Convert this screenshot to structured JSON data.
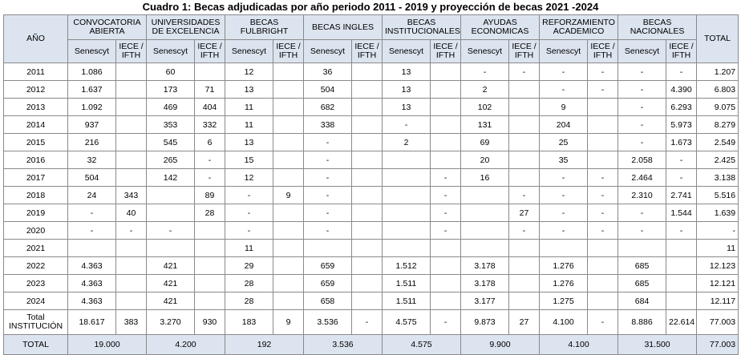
{
  "title": "Cuadro 1: Becas adjudicadas por año periodo 2011 - 2019 y proyección de becas 2021 -2024",
  "headers": {
    "year": "AÑO",
    "groups": [
      "CONVOCATORIA ABIERTA",
      "UNIVERSIDADES DE EXCELENCIA",
      "BECAS FULBRIGHT",
      "BECAS INGLES",
      "BECAS INSTITUCIONALES",
      "AYUDAS ECONOMICAS",
      "REFORZAMIENTO ACADEMICO",
      "BECAS NACIONALES"
    ],
    "sub_senescyt": "Senescyt",
    "sub_iece": "IECE / IFTH",
    "total": "TOTAL"
  },
  "rows": [
    {
      "year": "2011",
      "cells": [
        "1.086",
        "",
        "60",
        "",
        "12",
        "",
        "36",
        "",
        "13",
        "",
        "-",
        "-",
        "-",
        "-",
        "-",
        "-"
      ],
      "total": "1.207"
    },
    {
      "year": "2012",
      "cells": [
        "1.637",
        "",
        "173",
        "71",
        "13",
        "",
        "504",
        "",
        "13",
        "",
        "2",
        "",
        "-",
        "-",
        "-",
        "4.390"
      ],
      "total": "6.803"
    },
    {
      "year": "2013",
      "cells": [
        "1.092",
        "",
        "469",
        "404",
        "11",
        "",
        "682",
        "",
        "13",
        "",
        "102",
        "",
        "9",
        "",
        "-",
        "6.293"
      ],
      "total": "9.075"
    },
    {
      "year": "2014",
      "cells": [
        "937",
        "",
        "353",
        "332",
        "11",
        "",
        "338",
        "",
        "-",
        "",
        "131",
        "",
        "204",
        "",
        "-",
        "5.973"
      ],
      "total": "8.279"
    },
    {
      "year": "2015",
      "cells": [
        "216",
        "",
        "545",
        "6",
        "13",
        "",
        "-",
        "",
        "2",
        "",
        "69",
        "",
        "25",
        "",
        "-",
        "1.673"
      ],
      "total": "2.549"
    },
    {
      "year": "2016",
      "cells": [
        "32",
        "",
        "265",
        "-",
        "15",
        "",
        "-",
        "",
        "",
        "",
        "20",
        "",
        "35",
        "",
        "2.058",
        "-"
      ],
      "total": "2.425"
    },
    {
      "year": "2017",
      "cells": [
        "504",
        "",
        "142",
        "-",
        "12",
        "",
        "-",
        "",
        "",
        "-",
        "16",
        "",
        "-",
        "-",
        "2.464",
        "-"
      ],
      "total": "3.138"
    },
    {
      "year": "2018",
      "cells": [
        "24",
        "343",
        "",
        "89",
        "-",
        "9",
        "-",
        "",
        "",
        "-",
        "",
        "-",
        "-",
        "-",
        "2.310",
        "2.741"
      ],
      "total": "5.516"
    },
    {
      "year": "2019",
      "cells": [
        "-",
        "40",
        "",
        "28",
        "-",
        "",
        "-",
        "",
        "",
        "-",
        "",
        "27",
        "-",
        "-",
        "-",
        "1.544"
      ],
      "total": "1.639"
    },
    {
      "year": "2020",
      "cells": [
        "-",
        "-",
        "-",
        "",
        "-",
        "",
        "-",
        "",
        "",
        "-",
        "",
        "-",
        "-",
        "-",
        "-",
        "-"
      ],
      "total": "-"
    },
    {
      "year": "2021",
      "cells": [
        "",
        "",
        "",
        "",
        "11",
        "",
        "",
        "",
        "",
        "",
        "",
        "",
        "",
        "",
        "",
        ""
      ],
      "total": "11"
    },
    {
      "year": "2022",
      "cells": [
        "4.363",
        "",
        "421",
        "",
        "29",
        "",
        "659",
        "",
        "1.512",
        "",
        "3.178",
        "",
        "1.276",
        "",
        "685",
        ""
      ],
      "total": "12.123"
    },
    {
      "year": "2023",
      "cells": [
        "4.363",
        "",
        "421",
        "",
        "28",
        "",
        "659",
        "",
        "1.511",
        "",
        "3.178",
        "",
        "1.276",
        "",
        "685",
        ""
      ],
      "total": "12.121"
    },
    {
      "year": "2024",
      "cells": [
        "4.363",
        "",
        "421",
        "",
        "28",
        "",
        "658",
        "",
        "1.511",
        "",
        "3.177",
        "",
        "1.275",
        "",
        "684",
        ""
      ],
      "total": "12.117"
    }
  ],
  "total_institucion": {
    "label": "Total INSTITUCIÓN",
    "cells": [
      "18.617",
      "383",
      "3.270",
      "930",
      "183",
      "9",
      "3.536",
      "-",
      "4.575",
      "-",
      "9.873",
      "27",
      "4.100",
      "-",
      "8.886",
      "22.614"
    ],
    "total": "77.003"
  },
  "total_row": {
    "label": "TOTAL",
    "cells": [
      "19.000",
      "4.200",
      "192",
      "3.536",
      "4.575",
      "9.900",
      "4.100",
      "31.500"
    ],
    "total": "77.003"
  }
}
